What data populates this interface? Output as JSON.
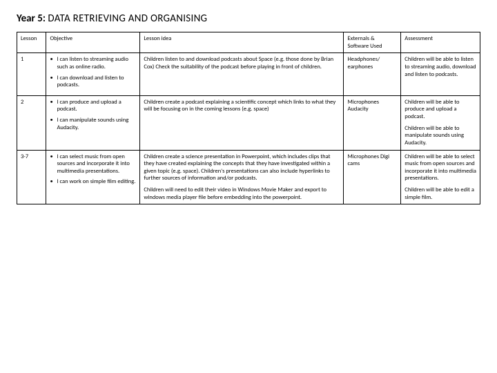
{
  "title": {
    "bold": "Year 5: ",
    "thin": "DATA RETRIEVING AND ORGANISING"
  },
  "headers": {
    "lesson": "Lesson",
    "objective": "Objective",
    "idea": "Lesson idea",
    "externals": "Externals & Software Used",
    "assessment": "Assessment"
  },
  "rows": [
    {
      "lesson": "1",
      "objectives": [
        "I can listen to streaming audio such as online radio.",
        "I can download and listen to podcasts."
      ],
      "idea": [
        "Children listen to and download podcasts about Space (e.g. those done by Brian Cox) Check the suitability of the podcast before playing in front of children."
      ],
      "externals": "Headphones/ earphones",
      "assessment": [
        "Children will be able to listen to streaming audio, download and listen to podcasts."
      ]
    },
    {
      "lesson": "2",
      "objectives": [
        "I can produce and upload a podcast.",
        "I can manipulate sounds using Audacity."
      ],
      "idea": [
        "Children create a podcast explaining a scientific concept which links to what they will be focusing on in the coming lessons (e.g. space)"
      ],
      "externals": "Microphones Audacity",
      "assessment": [
        "Children will be able to produce and upload a podcast.",
        "Children will be able to manipulate sounds using Audacity."
      ]
    },
    {
      "lesson": "3-7",
      "objectives": [
        "I can select music from open sources and incorporate it into multimedia presentations.",
        "I can work on simple film editing."
      ],
      "idea": [
        "Children create a science presentation in Powerpoint, which includes clips that they have created explaining the concepts that they have investigated within a given topic (e.g. space). Children's presentations can also include hyperlinks to further sources of information and/or podcasts.",
        "Children will need to edit their video in Windows Movie Maker and export to windows media player file before embedding into the powerpoint."
      ],
      "externals": "Microphones Digi cams",
      "assessment": [
        "Children will be able to select music from open sources and incorporate it into multimedia presentations.",
        "Children will be able to edit a simple film."
      ]
    }
  ]
}
